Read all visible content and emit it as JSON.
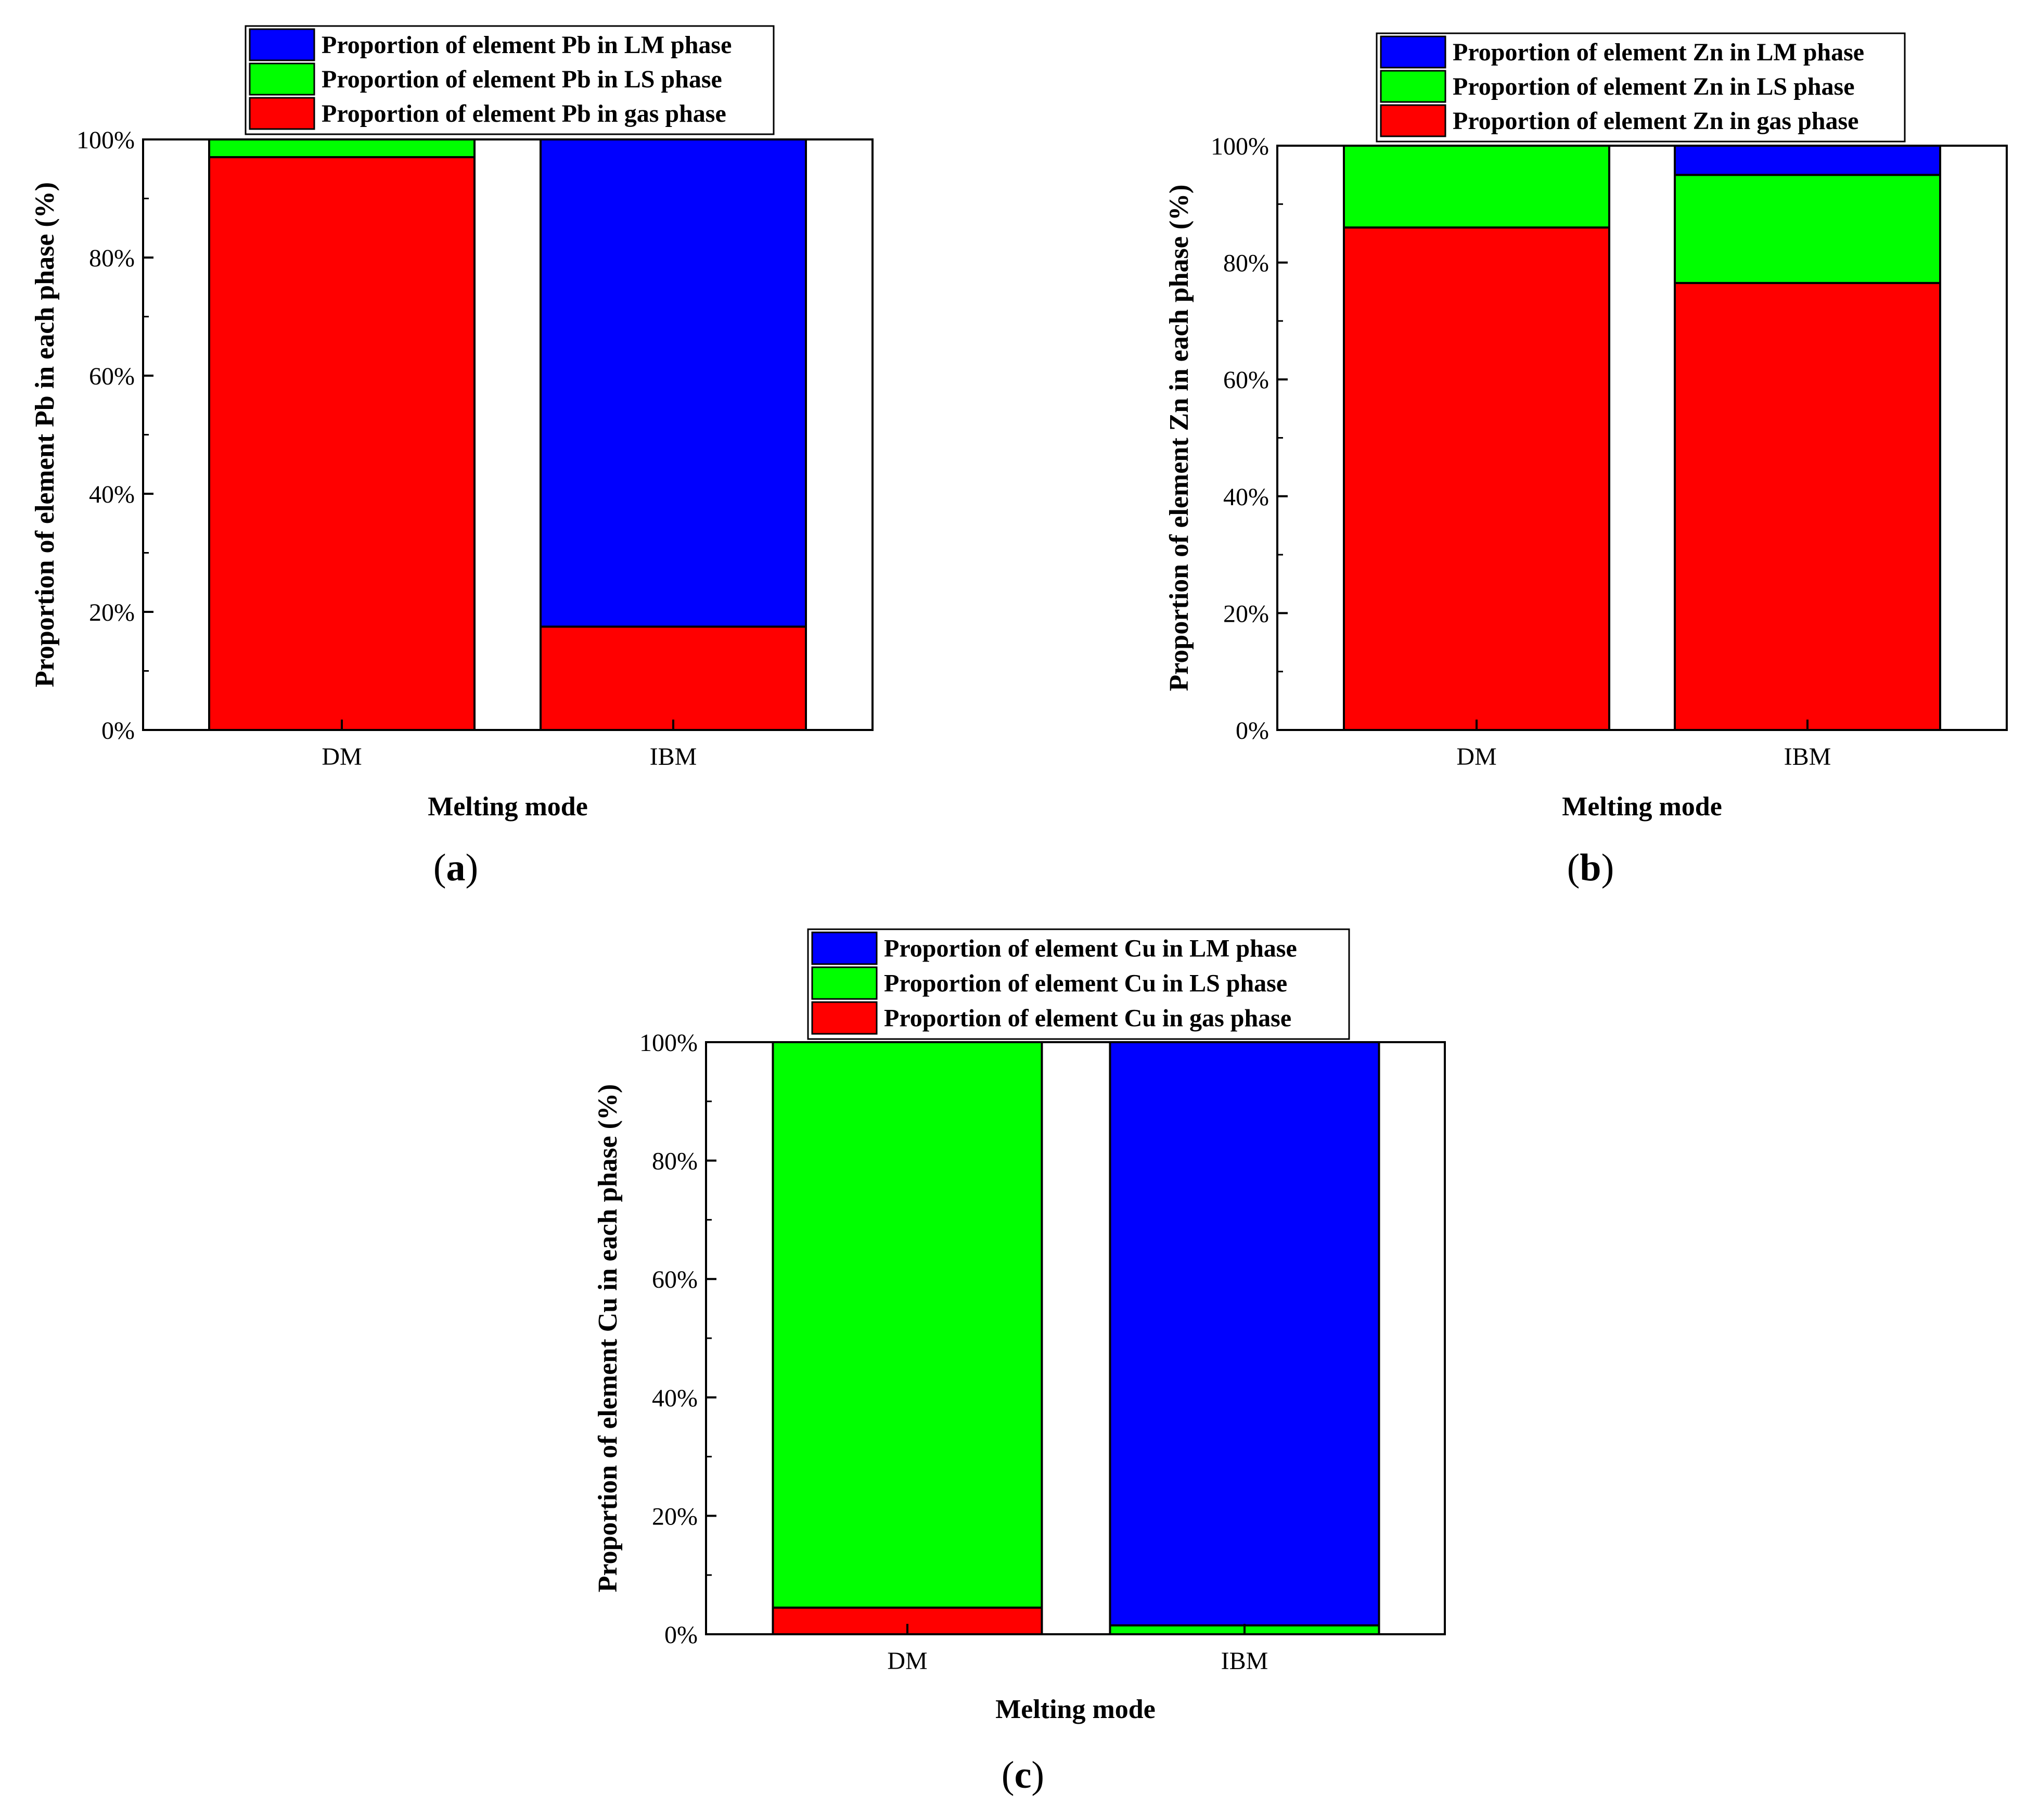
{
  "colors": {
    "lm": "#0000ff",
    "ls": "#00ff00",
    "gas": "#ff0000",
    "frame": "#000000",
    "background": "#ffffff"
  },
  "chart_data": [
    {
      "type": "bar",
      "stacked": true,
      "panel_label": "a",
      "categories": [
        "DM",
        "IBM"
      ],
      "series": [
        {
          "key": "gas",
          "name": "Proportion of element Pb in gas phase",
          "values": [
            97,
            17.5
          ]
        },
        {
          "key": "ls",
          "name": "Proportion of element Pb in LS phase",
          "values": [
            3,
            0
          ]
        },
        {
          "key": "lm",
          "name": "Proportion of element Pb in LM phase",
          "values": [
            0,
            82.5
          ]
        }
      ],
      "legend_order": [
        "lm",
        "ls",
        "gas"
      ],
      "xlabel": "Melting mode",
      "ylabel": "Proportion of element Pb in each phase (%)",
      "ylim": [
        0,
        100
      ],
      "yticks": [
        "0%",
        "20%",
        "40%",
        "60%",
        "80%",
        "100%"
      ],
      "legend_position": "top-left"
    },
    {
      "type": "bar",
      "stacked": true,
      "panel_label": "b",
      "categories": [
        "DM",
        "IBM"
      ],
      "series": [
        {
          "key": "gas",
          "name": "Proportion of element Zn in gas phase",
          "values": [
            86,
            76.5
          ]
        },
        {
          "key": "ls",
          "name": "Proportion of element Zn in LS phase",
          "values": [
            14,
            18.5
          ]
        },
        {
          "key": "lm",
          "name": "Proportion of element Zn in LM phase",
          "values": [
            0,
            5
          ]
        }
      ],
      "legend_order": [
        "lm",
        "ls",
        "gas"
      ],
      "xlabel": "Melting mode",
      "ylabel": "Proportion of element Zn in each phase (%)",
      "ylim": [
        0,
        100
      ],
      "yticks": [
        "0%",
        "20%",
        "40%",
        "60%",
        "80%",
        "100%"
      ],
      "legend_position": "top-center"
    },
    {
      "type": "bar",
      "stacked": true,
      "panel_label": "c",
      "categories": [
        "DM",
        "IBM"
      ],
      "series": [
        {
          "key": "gas",
          "name": "Proportion of element Cu in gas phase",
          "values": [
            4.5,
            0
          ]
        },
        {
          "key": "ls",
          "name": "Proportion of element Cu in LS phase",
          "values": [
            95.5,
            1.5
          ]
        },
        {
          "key": "lm",
          "name": "Proportion of element Cu in LM phase",
          "values": [
            0,
            98.5
          ]
        }
      ],
      "legend_order": [
        "lm",
        "ls",
        "gas"
      ],
      "xlabel": "Melting mode",
      "ylabel": "Proportion of element Cu in each phase (%)",
      "ylim": [
        0,
        100
      ],
      "yticks": [
        "0%",
        "20%",
        "40%",
        "60%",
        "80%",
        "100%"
      ],
      "legend_position": "top-center"
    }
  ]
}
